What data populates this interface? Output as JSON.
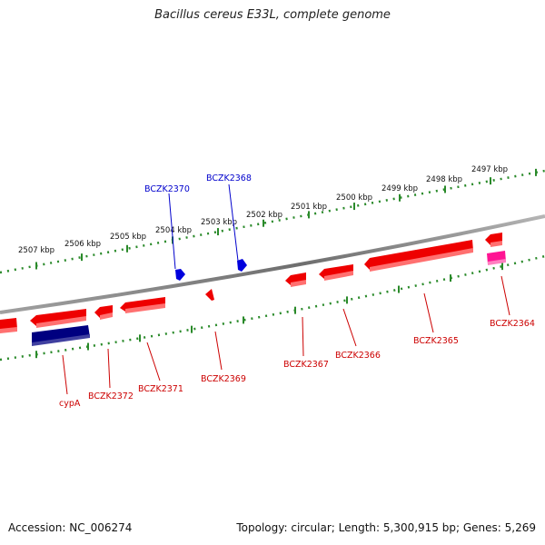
{
  "title": "Bacillus cereus E33L, complete genome",
  "footer": {
    "accession": "Accession: NC_006274",
    "summary": "Topology: circular; Length: 5,300,915 bp; Genes: 5,269"
  },
  "colors": {
    "backbone": "#808080",
    "ruler": "#2a8a2a",
    "forward_gene": "#0000dd",
    "reverse_gene": "#ee0000",
    "reverse_label": "#cc0000",
    "dark_gene": "#000080",
    "pink_gene": "#ff1493",
    "forward_label": "#0000cc"
  },
  "kbp_ticks": [
    "2507 kbp",
    "2506 kbp",
    "2505 kbp",
    "2504 kbp",
    "2503 kbp",
    "2502 kbp",
    "2501 kbp",
    "2500 kbp",
    "2499 kbp",
    "2498 kbp",
    "2497 kbp"
  ],
  "forward_genes": [
    {
      "label": "BCZK2370"
    },
    {
      "label": "BCZK2368"
    }
  ],
  "reverse_genes": [
    {
      "label": ""
    },
    {
      "label": "cypA"
    },
    {
      "label": "BCZK2372"
    },
    {
      "label": "BCZK2371"
    },
    {
      "label": "BCZK2369"
    },
    {
      "label": "BCZK2367"
    },
    {
      "label": "BCZK2366"
    },
    {
      "label": "BCZK2365"
    },
    {
      "label": "BCZK2364"
    }
  ]
}
